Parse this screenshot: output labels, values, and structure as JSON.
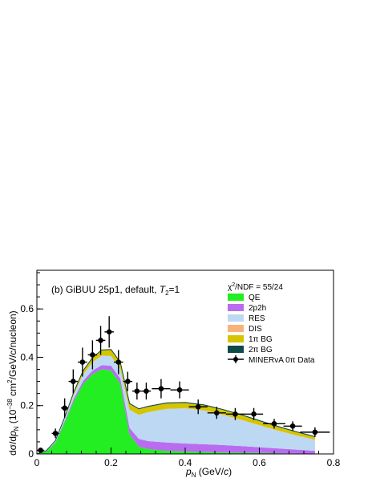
{
  "chart_data": {
    "type": "area",
    "panel_label_pre": "(b) GiBUU 25p1, default, ",
    "panel_label_italic": "T",
    "panel_label_sub": "2",
    "panel_label_post": "=1",
    "chi2_label_pre": "χ",
    "chi2_label_sup": "2",
    "chi2_label_post": "/NDF = 55/24",
    "xlabel_italic": "p",
    "xlabel_sub": "N",
    "xlabel_post": " (GeV/",
    "xlabel_c": "c",
    "xlabel_end": ")",
    "ylabel_pre": "dσ/d",
    "ylabel_italic": "p",
    "ylabel_sub": "N",
    "ylabel_mid": " (10",
    "ylabel_sup": "−38",
    "ylabel_post": " cm",
    "ylabel_sup2": "2",
    "ylabel_end": "/GeV/c/nucleon)",
    "xlim": [
      0,
      0.8
    ],
    "ylim": [
      0,
      0.76
    ],
    "xticks": [
      0,
      0.2,
      0.4,
      0.6,
      0.8
    ],
    "xtick_labels": [
      "0",
      "0.2",
      "0.4",
      "0.6",
      "0.8"
    ],
    "yticks": [
      0,
      0.2,
      0.4,
      0.6
    ],
    "ytick_labels": [
      "0",
      "0.2",
      "0.4",
      "0.6"
    ],
    "grid": false,
    "legend_position": "top-right",
    "x": [
      0.0,
      0.025,
      0.05,
      0.075,
      0.1,
      0.125,
      0.15,
      0.175,
      0.2,
      0.225,
      0.25,
      0.275,
      0.3,
      0.35,
      0.4,
      0.45,
      0.5,
      0.55,
      0.6,
      0.65,
      0.7,
      0.75
    ],
    "series": [
      {
        "name": "QE",
        "color": "#22ee22",
        "values": [
          0.0,
          0.01,
          0.045,
          0.13,
          0.22,
          0.29,
          0.33,
          0.35,
          0.345,
          0.29,
          0.08,
          0.03,
          0.02,
          0.013,
          0.01,
          0.008,
          0.006,
          0.005,
          0.004,
          0.003,
          0.002,
          0.001
        ]
      },
      {
        "name": "2p2h",
        "color": "#b96cf0",
        "values": [
          0.0,
          0.001,
          0.003,
          0.006,
          0.01,
          0.013,
          0.015,
          0.017,
          0.02,
          0.022,
          0.028,
          0.032,
          0.033,
          0.034,
          0.033,
          0.032,
          0.031,
          0.028,
          0.024,
          0.02,
          0.016,
          0.012
        ]
      },
      {
        "name": "RES",
        "color": "#bcd8f2",
        "values": [
          0.0,
          0.001,
          0.004,
          0.01,
          0.018,
          0.027,
          0.035,
          0.04,
          0.04,
          0.04,
          0.075,
          0.1,
          0.12,
          0.14,
          0.146,
          0.14,
          0.125,
          0.108,
          0.09,
          0.073,
          0.058,
          0.045
        ]
      },
      {
        "name": "DIS",
        "color": "#f9b27a",
        "values": [
          0.0,
          0.0,
          0.0,
          0.0,
          0.0,
          0.0,
          0.0,
          0.0,
          0.0,
          0.0,
          0.0,
          0.0,
          0.0,
          0.0,
          0.0,
          0.0,
          0.001,
          0.001,
          0.001,
          0.001,
          0.001,
          0.001
        ]
      },
      {
        "name": "1π BG",
        "color": "#d6c400",
        "values": [
          0.0,
          0.001,
          0.003,
          0.006,
          0.01,
          0.014,
          0.018,
          0.022,
          0.025,
          0.025,
          0.024,
          0.023,
          0.022,
          0.022,
          0.022,
          0.021,
          0.02,
          0.019,
          0.017,
          0.015,
          0.013,
          0.011
        ]
      },
      {
        "name": "2π BG",
        "color": "#0e4a49",
        "values": [
          0.0,
          0.0,
          0.0,
          0.0,
          0.001,
          0.001,
          0.001,
          0.001,
          0.002,
          0.002,
          0.002,
          0.002,
          0.002,
          0.002,
          0.002,
          0.002,
          0.002,
          0.002,
          0.002,
          0.002,
          0.002,
          0.002
        ]
      }
    ],
    "data_series": {
      "name": "MINERvA 0π Data",
      "x": [
        0.01,
        0.05,
        0.075,
        0.098,
        0.123,
        0.15,
        0.172,
        0.195,
        0.22,
        0.245,
        0.27,
        0.295,
        0.335,
        0.385,
        0.435,
        0.485,
        0.535,
        0.585,
        0.64,
        0.69,
        0.75
      ],
      "xerr": [
        0.01,
        0.01,
        0.01,
        0.0125,
        0.0125,
        0.0125,
        0.0125,
        0.0125,
        0.0125,
        0.0125,
        0.0125,
        0.0125,
        0.025,
        0.025,
        0.025,
        0.025,
        0.025,
        0.025,
        0.03,
        0.025,
        0.04
      ],
      "y": [
        0.015,
        0.085,
        0.19,
        0.3,
        0.38,
        0.41,
        0.47,
        0.505,
        0.38,
        0.3,
        0.26,
        0.26,
        0.27,
        0.265,
        0.195,
        0.17,
        0.165,
        0.165,
        0.125,
        0.115,
        0.09
      ],
      "yerr": [
        0.01,
        0.02,
        0.04,
        0.05,
        0.06,
        0.06,
        0.06,
        0.065,
        0.05,
        0.04,
        0.035,
        0.035,
        0.04,
        0.035,
        0.03,
        0.025,
        0.025,
        0.025,
        0.02,
        0.02,
        0.02
      ]
    }
  }
}
